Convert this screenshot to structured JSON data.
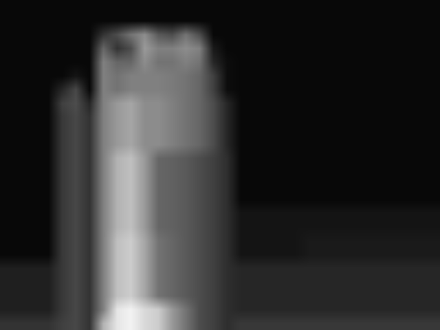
{
  "chart_data": {
    "type": "heatmap",
    "cells": [
      [
        20,
        20,
        20,
        20,
        25,
        28,
        20,
        70,
        90,
        95,
        85,
        80,
        60,
        45,
        30,
        25,
        18,
        22,
        22,
        22,
        22,
        22,
        22,
        22,
        22,
        22,
        22,
        22,
        22,
        22,
        22,
        22
      ],
      [
        12,
        12,
        12,
        12,
        22,
        28,
        20,
        50,
        90,
        95,
        85,
        80,
        60,
        45,
        30,
        25,
        18,
        15,
        15,
        15,
        15,
        15,
        15,
        15,
        15,
        15,
        15,
        15,
        15,
        15,
        15,
        15
      ],
      [
        12,
        12,
        12,
        12,
        22,
        28,
        20,
        50,
        75,
        80,
        65,
        45,
        40,
        35,
        30,
        25,
        18,
        15,
        15,
        15,
        15,
        15,
        15,
        15,
        15,
        15,
        15,
        15,
        15,
        15,
        15,
        15
      ],
      [
        12,
        12,
        12,
        12,
        22,
        28,
        20,
        50,
        75,
        80,
        65,
        45,
        40,
        35,
        30,
        25,
        18,
        15,
        15,
        15,
        15,
        15,
        15,
        15,
        15,
        15,
        15,
        15,
        15,
        15,
        15,
        15
      ],
      [
        12,
        12,
        12,
        12,
        22,
        28,
        20,
        50,
        75,
        80,
        65,
        45,
        40,
        35,
        30,
        25,
        18,
        15,
        15,
        15,
        15,
        15,
        15,
        15,
        15,
        15,
        15,
        15,
        15,
        15,
        15,
        15
      ],
      [
        3,
        3,
        3,
        3,
        22,
        28,
        20,
        50,
        75,
        80,
        65,
        45,
        40,
        35,
        30,
        25,
        18,
        8,
        8,
        8,
        8,
        8,
        10,
        10,
        10,
        10,
        10,
        10,
        10,
        10,
        10,
        10
      ],
      [
        3,
        3,
        3,
        3,
        22,
        28,
        20,
        50,
        75,
        80,
        65,
        45,
        40,
        35,
        30,
        25,
        18,
        8,
        8,
        8,
        8,
        8,
        10,
        10,
        10,
        10,
        10,
        10,
        10,
        10,
        10,
        10
      ],
      [
        3,
        3,
        3,
        3,
        22,
        28,
        20,
        50,
        70,
        75,
        60,
        40,
        38,
        35,
        30,
        25,
        18,
        8,
        8,
        8,
        8,
        8,
        8,
        8,
        8,
        8,
        8,
        8,
        8,
        8,
        8,
        8
      ],
      [
        3,
        3,
        3,
        3,
        22,
        28,
        20,
        50,
        70,
        75,
        60,
        40,
        38,
        35,
        30,
        25,
        18,
        8,
        8,
        8,
        8,
        8,
        8,
        8,
        8,
        8,
        8,
        8,
        8,
        8,
        8,
        8
      ],
      [
        3,
        3,
        3,
        3,
        22,
        28,
        20,
        50,
        70,
        75,
        60,
        40,
        38,
        35,
        30,
        25,
        18,
        3,
        3,
        3,
        3,
        3,
        3,
        3,
        3,
        3,
        3,
        3,
        3,
        3,
        3,
        3
      ],
      [
        3,
        3,
        3,
        3,
        22,
        28,
        20,
        50,
        70,
        75,
        60,
        40,
        38,
        35,
        30,
        25,
        18,
        3,
        3,
        3,
        3,
        3,
        3,
        3,
        3,
        3,
        3,
        3,
        3,
        3,
        3,
        3
      ],
      [
        3,
        3,
        3,
        3,
        22,
        28,
        20,
        50,
        70,
        75,
        60,
        40,
        38,
        35,
        30,
        25,
        18,
        3,
        3,
        3,
        3,
        3,
        3,
        3,
        3,
        3,
        3,
        3,
        3,
        3,
        3,
        3
      ],
      [
        3,
        3,
        3,
        3,
        22,
        28,
        20,
        50,
        70,
        75,
        60,
        40,
        38,
        35,
        30,
        25,
        18,
        3,
        3,
        3,
        3,
        3,
        3,
        3,
        3,
        3,
        3,
        3,
        3,
        3,
        3,
        3
      ],
      [
        3,
        3,
        3,
        3,
        22,
        28,
        20,
        50,
        60,
        65,
        55,
        55,
        50,
        45,
        40,
        30,
        15,
        3,
        3,
        3,
        3,
        3,
        3,
        3,
        3,
        3,
        3,
        3,
        3,
        3,
        3,
        3
      ],
      [
        3,
        3,
        3,
        3,
        22,
        28,
        20,
        50,
        60,
        65,
        55,
        55,
        50,
        45,
        40,
        30,
        15,
        3,
        3,
        3,
        3,
        3,
        3,
        3,
        3,
        3,
        3,
        3,
        3,
        3,
        3,
        3
      ],
      [
        3,
        3,
        3,
        3,
        22,
        28,
        20,
        50,
        60,
        65,
        55,
        55,
        50,
        45,
        40,
        30,
        15,
        3,
        3,
        3,
        3,
        3,
        3,
        3,
        3,
        3,
        3,
        3,
        3,
        3,
        3,
        3
      ],
      [
        3,
        3,
        3,
        3,
        25,
        30,
        15,
        50,
        60,
        65,
        55,
        55,
        50,
        45,
        40,
        30,
        15,
        3,
        3,
        3,
        3,
        3,
        3,
        3,
        3,
        3,
        3,
        3,
        3,
        3,
        3,
        3
      ],
      [
        3,
        3,
        3,
        3,
        15,
        28,
        3,
        50,
        45,
        50,
        50,
        50,
        48,
        45,
        40,
        25,
        5,
        3,
        3,
        3,
        3,
        3,
        3,
        3,
        3,
        3,
        3,
        3,
        3,
        3,
        3,
        3
      ],
      [
        3,
        3,
        3,
        3,
        3,
        8,
        3,
        50,
        45,
        50,
        50,
        50,
        48,
        45,
        40,
        25,
        5,
        3,
        3,
        3,
        3,
        3,
        3,
        3,
        3,
        3,
        3,
        3,
        3,
        3,
        3,
        3
      ],
      [
        3,
        3,
        3,
        3,
        3,
        3,
        3,
        50,
        40,
        40,
        55,
        45,
        45,
        50,
        45,
        15,
        5,
        3,
        3,
        3,
        3,
        3,
        3,
        3,
        3,
        3,
        3,
        3,
        3,
        3,
        3,
        3
      ],
      [
        3,
        3,
        3,
        3,
        3,
        3,
        3,
        40,
        20,
        30,
        60,
        50,
        50,
        55,
        50,
        10,
        3,
        3,
        3,
        3,
        3,
        3,
        3,
        3,
        3,
        3,
        3,
        3,
        3,
        3,
        3,
        3
      ],
      [
        3,
        3,
        3,
        3,
        3,
        3,
        3,
        20,
        30,
        45,
        55,
        35,
        30,
        45,
        30,
        3,
        3,
        3,
        3,
        3,
        3,
        3,
        3,
        3,
        3,
        3,
        3,
        3,
        3,
        3,
        3,
        3
      ],
      [
        3,
        3,
        3,
        3,
        3,
        3,
        3,
        3,
        3,
        3,
        3,
        3,
        3,
        3,
        3,
        3,
        3,
        3,
        3,
        3,
        3,
        3,
        3,
        3,
        3,
        3,
        3,
        3,
        3,
        3,
        3,
        3
      ],
      [
        3,
        3,
        3,
        3,
        3,
        3,
        3,
        3,
        3,
        3,
        3,
        3,
        3,
        3,
        3,
        3,
        3,
        3,
        3,
        3,
        3,
        3,
        3,
        3,
        3,
        3,
        3,
        3,
        3,
        3,
        3,
        3
      ]
    ],
    "xlim": [
      -0.5,
      31.5
    ],
    "ylim": [
      -0.5,
      23.5
    ],
    "zlim": [
      0,
      100
    ],
    "color": "#ffffff",
    "tick_labels": false,
    "grid": false
  }
}
